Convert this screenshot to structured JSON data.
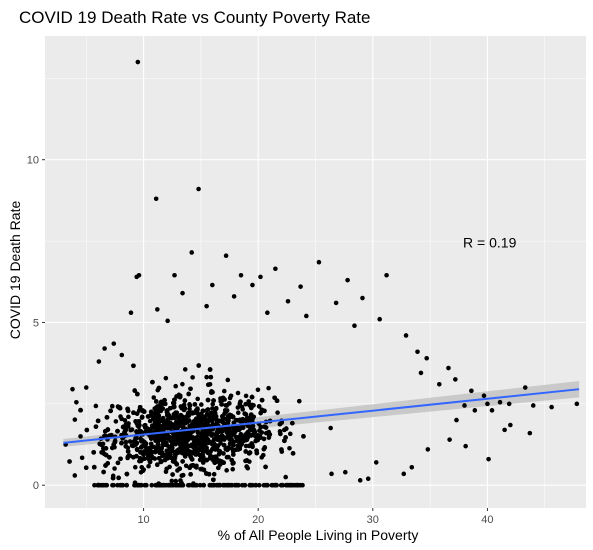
{
  "chart_data": {
    "type": "scatter",
    "title": "COVID 19 Death Rate vs County Poverty Rate",
    "xlabel": "% of All People Living in Poverty",
    "ylabel": "COVID 19 Death Rate",
    "xlim": [
      1.4,
      48.6
    ],
    "ylim": [
      -0.7,
      13.8
    ],
    "x_ticks": [
      10,
      20,
      30,
      40
    ],
    "y_ticks": [
      0,
      5,
      10
    ],
    "x_tick_labels": [
      "10",
      "20",
      "30",
      "40"
    ],
    "y_tick_labels": [
      "0",
      "5",
      "10"
    ],
    "grid": true,
    "background": "#ebebeb",
    "point_color": "#000000",
    "annotation": {
      "text": "R =  0.19",
      "x": 40.2,
      "y": 7.45
    },
    "trend": {
      "type": "linear",
      "color": "#3366ff",
      "band_color": "#bdbdbd",
      "x": [
        3,
        48
      ],
      "y": [
        1.3,
        2.95
      ],
      "ci_halfwidth": [
        0.12,
        0.25
      ]
    },
    "points": [
      [
        9.5,
        13.0
      ],
      [
        11.1,
        8.8
      ],
      [
        14.8,
        9.1
      ],
      [
        14.2,
        7.15
      ],
      [
        17.2,
        7.05
      ],
      [
        21.5,
        6.65
      ],
      [
        25.3,
        6.85
      ],
      [
        9.4,
        6.4
      ],
      [
        9.6,
        6.45
      ],
      [
        12.7,
        6.45
      ],
      [
        18.5,
        6.45
      ],
      [
        19.5,
        6.15
      ],
      [
        20.2,
        6.4
      ],
      [
        31.2,
        6.45
      ],
      [
        23.7,
        6.1
      ],
      [
        16.0,
        6.15
      ],
      [
        27.8,
        6.3
      ],
      [
        13.4,
        5.9
      ],
      [
        17.9,
        5.8
      ],
      [
        26.8,
        5.6
      ],
      [
        22.6,
        5.65
      ],
      [
        29.1,
        5.75
      ],
      [
        15.5,
        5.5
      ],
      [
        11.2,
        5.4
      ],
      [
        8.9,
        5.3
      ],
      [
        24.2,
        5.2
      ],
      [
        30.6,
        5.1
      ],
      [
        12.1,
        5.05
      ],
      [
        20.8,
        5.3
      ],
      [
        28.4,
        4.9
      ],
      [
        32.9,
        4.6
      ],
      [
        33.9,
        4.1
      ],
      [
        34.7,
        3.9
      ],
      [
        36.6,
        3.6
      ],
      [
        34.2,
        3.45
      ],
      [
        37.2,
        3.25
      ],
      [
        35.8,
        3.1
      ],
      [
        38.6,
        2.9
      ],
      [
        39.7,
        2.75
      ],
      [
        41.1,
        2.55
      ],
      [
        38.0,
        2.45
      ],
      [
        40.4,
        2.3
      ],
      [
        41.9,
        2.5
      ],
      [
        43.3,
        3.0
      ],
      [
        38.9,
        2.3
      ],
      [
        44.0,
        2.45
      ],
      [
        37.3,
        2.0
      ],
      [
        42.0,
        1.85
      ],
      [
        47.8,
        2.5
      ],
      [
        45.6,
        2.4
      ],
      [
        40.0,
        2.5
      ],
      [
        43.7,
        1.6
      ],
      [
        36.7,
        1.4
      ],
      [
        41.5,
        1.7
      ],
      [
        40.1,
        0.8
      ],
      [
        38.1,
        1.2
      ],
      [
        34.8,
        1.1
      ],
      [
        30.3,
        0.7
      ],
      [
        27.6,
        0.4
      ],
      [
        29.6,
        0.2
      ],
      [
        32.7,
        0.35
      ],
      [
        26.4,
        0.35
      ],
      [
        4.0,
        0.3
      ],
      [
        3.8,
        2.95
      ],
      [
        5.0,
        3.0
      ],
      [
        3.2,
        1.25
      ],
      [
        4.5,
        1.5
      ],
      [
        6.1,
        3.8
      ],
      [
        6.6,
        4.2
      ],
      [
        8.1,
        4.0
      ],
      [
        7.4,
        4.35
      ],
      [
        22.4,
        0.25
      ],
      [
        28.9,
        0.15
      ],
      [
        33.4,
        0.55
      ]
    ]
  }
}
